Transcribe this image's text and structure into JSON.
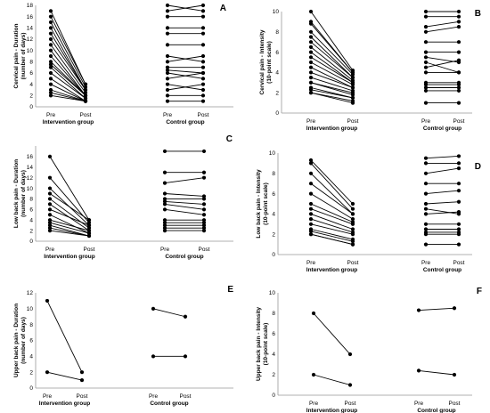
{
  "chart_data": [
    {
      "id": "A",
      "type": "line",
      "panel_label": "A",
      "ylabel": [
        "Cervical pain - Duration",
        "(number of days)"
      ],
      "ylim": [
        0,
        18
      ],
      "yticks": [
        0,
        2,
        4,
        6,
        8,
        10,
        12,
        14,
        16,
        18
      ],
      "tick_labels": [
        "Pre",
        "Post",
        "Pre",
        "Post"
      ],
      "groups": [
        {
          "name": "Intervention group",
          "pre": [
            17,
            16,
            15,
            14,
            13,
            12,
            11,
            10,
            9,
            8,
            7.5,
            7,
            6,
            5,
            4,
            3,
            2.5,
            2
          ],
          "post": [
            4,
            4,
            3.5,
            3,
            3,
            3,
            2.5,
            2,
            2,
            2,
            2,
            1.5,
            1.5,
            1,
            1,
            1,
            1,
            1
          ]
        },
        {
          "name": "Control group",
          "pre": [
            18,
            17,
            16,
            14,
            13,
            11,
            9,
            8,
            7,
            6.5,
            6,
            5,
            4,
            3,
            2,
            1
          ],
          "post": [
            17,
            18,
            16,
            14,
            13,
            11,
            8,
            9,
            7,
            6,
            5,
            6,
            3,
            4,
            2,
            1
          ]
        }
      ]
    },
    {
      "id": "B",
      "type": "line",
      "panel_label": "B",
      "ylabel": [
        "Cervical pain - Intensity",
        "(10-point scale)"
      ],
      "ylim": [
        0,
        10
      ],
      "yticks": [
        0,
        2,
        4,
        6,
        8,
        10
      ],
      "tick_labels": [
        "Pre",
        "Post",
        "Pre",
        "Post"
      ],
      "groups": [
        {
          "name": "Intervention group",
          "pre": [
            10,
            9,
            8.8,
            8,
            7.5,
            7,
            6.5,
            6,
            5.5,
            5,
            4.5,
            4,
            3.5,
            3,
            3,
            2.5,
            2.3,
            2,
            2
          ],
          "post": [
            4.2,
            4,
            4,
            3.8,
            3.5,
            3.5,
            3.2,
            3,
            3,
            2.8,
            2.5,
            2.5,
            2.2,
            2,
            1.8,
            1.5,
            1.5,
            1.2,
            1
          ]
        },
        {
          "name": "Control group",
          "pre": [
            10,
            9.5,
            8.5,
            8,
            7,
            6,
            5.5,
            5,
            4.5,
            4,
            3,
            2.8,
            2.5,
            2.2,
            1
          ],
          "post": [
            10,
            9.5,
            9,
            8.5,
            7,
            6,
            5,
            4,
            5.2,
            4,
            3,
            2.8,
            2.5,
            2.2,
            1
          ]
        }
      ]
    },
    {
      "id": "C",
      "type": "line",
      "panel_label": "C",
      "ylabel": [
        "Low back pain - Duration",
        "(number of days)"
      ],
      "ylim": [
        0,
        18
      ],
      "yticks": [
        0,
        2,
        4,
        6,
        8,
        10,
        12,
        14,
        16
      ],
      "tick_labels": [
        "Pre",
        "Post",
        "Pre",
        "Post"
      ],
      "groups": [
        {
          "name": "Intervention group",
          "pre": [
            16,
            12,
            10,
            9,
            8,
            7,
            6,
            5,
            4,
            3.5,
            3,
            2.5,
            2
          ],
          "post": [
            4,
            3.5,
            3,
            4,
            2.5,
            2,
            3,
            1.5,
            2,
            1.5,
            1,
            1,
            1
          ]
        },
        {
          "name": "Control group",
          "pre": [
            17,
            13,
            11,
            9,
            8,
            7.5,
            7,
            6,
            4,
            3.5,
            3,
            2.5,
            2
          ],
          "post": [
            17,
            13,
            12,
            8.5,
            8,
            7,
            6,
            5,
            4,
            3.5,
            3,
            2.5,
            2
          ]
        }
      ]
    },
    {
      "id": "D",
      "type": "line",
      "panel_label": "D",
      "ylabel": [
        "Low back pain - Intensity",
        "(10-point scale)"
      ],
      "ylim": [
        0,
        10
      ],
      "yticks": [
        0,
        2,
        4,
        6,
        8,
        10
      ],
      "tick_labels": [
        "Pre",
        "Post",
        "Pre",
        "Post"
      ],
      "groups": [
        {
          "name": "Intervention group",
          "pre": [
            9.3,
            9,
            8,
            7,
            6,
            5,
            4.5,
            4,
            3.5,
            3,
            2.5,
            2.3,
            2,
            2
          ],
          "post": [
            5,
            4.5,
            4,
            4,
            3.5,
            3.2,
            3,
            2.5,
            2.2,
            2,
            1.5,
            1.3,
            1,
            1
          ]
        },
        {
          "name": "Control group",
          "pre": [
            9.5,
            9,
            8,
            7,
            6,
            5,
            4.5,
            4,
            3,
            2.5,
            2.2,
            2,
            1
          ],
          "post": [
            9.7,
            9,
            8.5,
            7,
            6.3,
            5.2,
            4,
            4.2,
            3,
            2.5,
            2.2,
            2,
            1
          ]
        }
      ]
    },
    {
      "id": "E",
      "type": "line",
      "panel_label": "E",
      "ylabel": [
        "Upper back pain - Duration",
        "(number of days)"
      ],
      "ylim": [
        0,
        12
      ],
      "yticks": [
        0,
        2,
        4,
        6,
        8,
        10,
        12
      ],
      "tick_labels": [
        "Pre",
        "Post",
        "Pre",
        "Post"
      ],
      "groups": [
        {
          "name": "Intervention group",
          "pre": [
            11,
            2
          ],
          "post": [
            2,
            1
          ]
        },
        {
          "name": "Control group",
          "pre": [
            10,
            4
          ],
          "post": [
            9,
            4
          ]
        }
      ]
    },
    {
      "id": "F",
      "type": "line",
      "panel_label": "F",
      "ylabel": [
        "Upper back pain - Intensity",
        "(10-point scale)"
      ],
      "ylim": [
        0,
        10
      ],
      "yticks": [
        0,
        2,
        4,
        6,
        8,
        10
      ],
      "tick_labels": [
        "Pre",
        "Post",
        "Pre",
        "Post"
      ],
      "groups": [
        {
          "name": "Intervention group",
          "pre": [
            8,
            2
          ],
          "post": [
            4,
            1
          ]
        },
        {
          "name": "Control group",
          "pre": [
            8.3,
            2.4
          ],
          "post": [
            8.5,
            2
          ]
        }
      ]
    }
  ]
}
